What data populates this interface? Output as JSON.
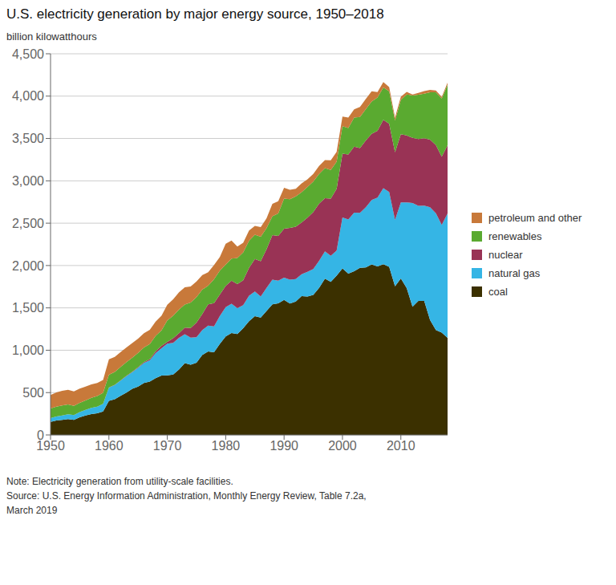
{
  "chart_data": {
    "type": "area",
    "stacked": true,
    "title": "U.S. electricity generation by major energy source, 1950–2018",
    "ylabel": "billion kilowatthours",
    "annotations": [
      "Note: Electricity generation from utility-scale facilities.",
      "Source: U.S. Energy Information Administration, Monthly Energy Review, Table 7.2a,",
      "March 2019"
    ],
    "grid": true,
    "legend": "right",
    "xlim": [
      1950,
      2018
    ],
    "xticks": [
      1950,
      1960,
      1970,
      1980,
      1990,
      2000,
      2010
    ],
    "ylim": [
      0,
      4500
    ],
    "yticks": [
      0,
      500,
      {
        "value": 1000,
        "label": "1,000"
      },
      {
        "value": 1500,
        "label": "1,500"
      },
      {
        "value": 2000,
        "label": "2,000"
      },
      {
        "value": 2500,
        "label": "2,500"
      },
      {
        "value": 3000,
        "label": "3,000"
      },
      {
        "value": 3500,
        "label": "3,500"
      },
      {
        "value": 4000,
        "label": "4,000"
      },
      {
        "value": 4500,
        "label": "4,500"
      }
    ],
    "x": [
      1950,
      1951,
      1952,
      1953,
      1954,
      1955,
      1956,
      1957,
      1958,
      1959,
      1960,
      1961,
      1962,
      1963,
      1964,
      1965,
      1966,
      1967,
      1968,
      1969,
      1970,
      1971,
      1972,
      1973,
      1974,
      1975,
      1976,
      1977,
      1978,
      1979,
      1980,
      1981,
      1982,
      1983,
      1984,
      1985,
      1986,
      1987,
      1988,
      1989,
      1990,
      1991,
      1992,
      1993,
      1994,
      1995,
      1996,
      1997,
      1998,
      1999,
      2000,
      2001,
      2002,
      2003,
      2004,
      2005,
      2006,
      2007,
      2008,
      2009,
      2010,
      2011,
      2012,
      2013,
      2014,
      2015,
      2016,
      2017,
      2018
    ],
    "series": [
      {
        "name": "coal",
        "color": "#3b3000",
        "values": [
          155,
          170,
          178,
          188,
          178,
          209,
          230,
          247,
          255,
          276,
          403,
          422,
          463,
          500,
          545,
          571,
          614,
          630,
          671,
          701,
          704,
          713,
          771,
          848,
          828,
          853,
          944,
          985,
          976,
          1075,
          1162,
          1203,
          1192,
          1259,
          1342,
          1402,
          1386,
          1464,
          1543,
          1554,
          1594,
          1551,
          1576,
          1639,
          1635,
          1652,
          1737,
          1845,
          1807,
          1881,
          1966,
          1904,
          1933,
          1974,
          1978,
          2013,
          1990,
          2016,
          1985,
          1755,
          1847,
          1733,
          1514,
          1581,
          1581,
          1356,
          1239,
          1207,
          1146
        ]
      },
      {
        "name": "natural gas",
        "color": "#35b5e5",
        "values": [
          45,
          47,
          52,
          55,
          57,
          61,
          67,
          72,
          80,
          90,
          157,
          168,
          179,
          194,
          196,
          222,
          236,
          252,
          295,
          321,
          373,
          374,
          376,
          340,
          320,
          300,
          294,
          305,
          305,
          329,
          346,
          346,
          306,
          274,
          302,
          292,
          249,
          273,
          289,
          267,
          264,
          281,
          264,
          259,
          291,
          307,
          319,
          322,
          309,
          296,
          601,
          639,
          691,
          649,
          710,
          760,
          813,
          897,
          883,
          784,
          897,
          1013,
          1225,
          1124,
          1126,
          1333,
          1378,
          1273,
          1468
        ]
      },
      {
        "name": "nuclear",
        "color": "#993355",
        "values": [
          0,
          0,
          0,
          0,
          0,
          0,
          0,
          0,
          0,
          0,
          2,
          2,
          3,
          4,
          5,
          7,
          10,
          14,
          21,
          29,
          22,
          55,
          54,
          79,
          114,
          173,
          191,
          251,
          276,
          255,
          251,
          273,
          282,
          294,
          328,
          384,
          415,
          455,
          527,
          529,
          577,
          613,
          619,
          611,
          640,
          673,
          675,
          628,
          673,
          728,
          754,
          769,
          780,
          764,
          788,
          782,
          787,
          807,
          806,
          799,
          807,
          790,
          769,
          789,
          797,
          797,
          805,
          805,
          807
        ]
      },
      {
        "name": "renewables",
        "color": "#5aaa30",
        "values": [
          112,
          116,
          118,
          116,
          109,
          109,
          111,
          118,
          124,
          132,
          149,
          152,
          158,
          161,
          166,
          168,
          173,
          177,
          182,
          184,
          253,
          266,
          279,
          272,
          300,
          300,
          287,
          221,
          281,
          280,
          251,
          261,
          309,
          328,
          321,
          286,
          291,
          249,
          222,
          265,
          356,
          339,
          357,
          357,
          361,
          360,
          351,
          356,
          340,
          320,
          325,
          312,
          344,
          368,
          370,
          381,
          393,
          381,
          382,
          374,
          404,
          484,
          500,
          524,
          524,
          560,
          623,
          686,
          713
        ]
      },
      {
        "name": "petroleum and other",
        "color": "#c8793a",
        "values": [
          160,
          168,
          172,
          173,
          170,
          168,
          163,
          160,
          154,
          150,
          182,
          178,
          176,
          174,
          173,
          170,
          167,
          167,
          169,
          173,
          184,
          192,
          204,
          205,
          191,
          186,
          171,
          159,
          167,
          161,
          246,
          213,
          135,
          114,
          120,
          104,
          112,
          118,
          148,
          145,
          126,
          111,
          89,
          104,
          91,
          90,
          93,
          93,
          113,
          116,
          112,
          124,
          96,
          117,
          121,
          122,
          64,
          65,
          50,
          36,
          37,
          30,
          11,
          19,
          31,
          27,
          21,
          20,
          24
        ]
      }
    ]
  }
}
